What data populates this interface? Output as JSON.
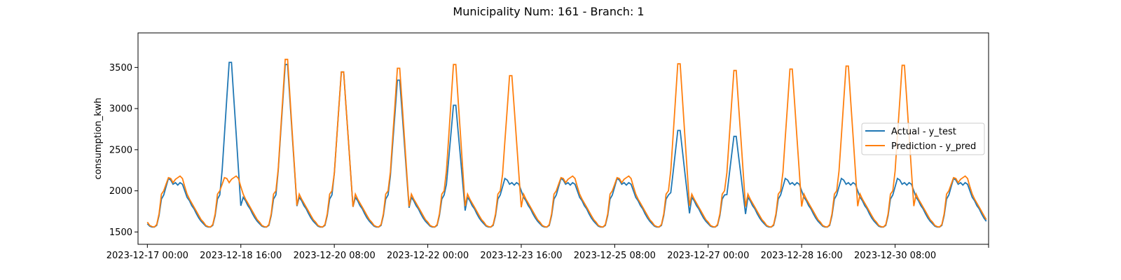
{
  "chart_data": {
    "type": "line",
    "title": "Municipality Num: 161 - Branch: 1",
    "xlabel": "",
    "ylabel": "consumption_kwh",
    "ylim": [
      1350,
      3920
    ],
    "xlim": [
      "2023-12-16 20:00",
      "2024-01-01 00:00"
    ],
    "x_start": "2023-12-17 00:00",
    "x_step_hours": 1,
    "yticks": [
      1500,
      2000,
      2500,
      3000,
      3500
    ],
    "xticks": [
      {
        "x": "2023-12-17 00:00",
        "label": "2023-12-17 00:00"
      },
      {
        "x": "2023-12-18 16:00",
        "label": "2023-12-18 16:00"
      },
      {
        "x": "2023-12-20 08:00",
        "label": "2023-12-20 08:00"
      },
      {
        "x": "2023-12-22 00:00",
        "label": "2023-12-22 00:00"
      },
      {
        "x": "2023-12-23 16:00",
        "label": "2023-12-23 16:00"
      },
      {
        "x": "2023-12-25 08:00",
        "label": "2023-12-25 08:00"
      },
      {
        "x": "2023-12-27 00:00",
        "label": "2023-12-27 00:00"
      },
      {
        "x": "2023-12-28 16:00",
        "label": "2023-12-28 16:00"
      },
      {
        "x": "2023-12-30 08:00",
        "label": "2023-12-30 08:00"
      },
      {
        "x": "2024-01-01 00:00",
        "label": ""
      }
    ],
    "grid": false,
    "legend_position": "center-right",
    "series": [
      {
        "name": "Actual - y_test",
        "color": "#1f77b4",
        "daily_profile": [
          1600,
          1570,
          1560,
          1560,
          1580,
          1700,
          1900,
          1950,
          2050,
          2150,
          2130,
          2080,
          2100,
          2070,
          2100,
          2080,
          2000,
          1920,
          1880,
          1820,
          1780,
          1720,
          1670,
          1630
        ],
        "day_peaks": [
          2150,
          3780,
          3750,
          3650,
          3540,
          3200,
          2080,
          2100,
          2190,
          2860,
          2780,
          2050,
          1950,
          1950,
          1950
        ],
        "values": []
      },
      {
        "name": "Prediction - y_pred",
        "color": "#ff7f0e",
        "daily_profile": [
          1620,
          1580,
          1565,
          1560,
          1590,
          1720,
          1960,
          2000,
          2080,
          2160,
          2150,
          2100,
          2140,
          2160,
          2180,
          2150,
          2050,
          1960,
          1900,
          1850,
          1800,
          1750,
          1700,
          1650
        ],
        "day_peaks": [
          2180,
          2190,
          3820,
          3650,
          3700,
          3750,
          3600,
          2220,
          2100,
          3760,
          3670,
          3690,
          3730,
          3740,
          2180
        ],
        "values": []
      }
    ]
  }
}
